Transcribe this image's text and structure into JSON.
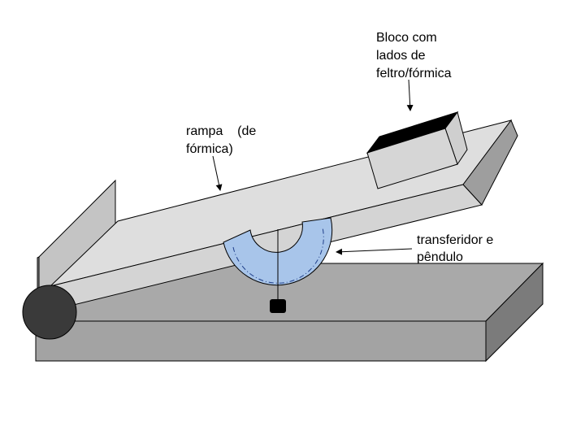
{
  "labels": {
    "block": [
      "Bloco com",
      "lados de",
      "feltro/fórmica"
    ],
    "ramp": [
      "rampa    (de",
      "fórmica)"
    ],
    "protractor": [
      "transferidor e",
      "pêndulo"
    ]
  },
  "colors": {
    "base_front": "#a3a3a3",
    "base_top": "#a9a9a9",
    "base_side": "#7b7b7b",
    "ramp_top": "#dedede",
    "ramp_front": "#d4d4d4",
    "ramp_end": "#9e9e9e",
    "block_face": "#d6d6d6",
    "block_top": "#000000",
    "protractor": "#a8c5ea",
    "roller": "#3a3a3a",
    "weight": "#000000"
  }
}
